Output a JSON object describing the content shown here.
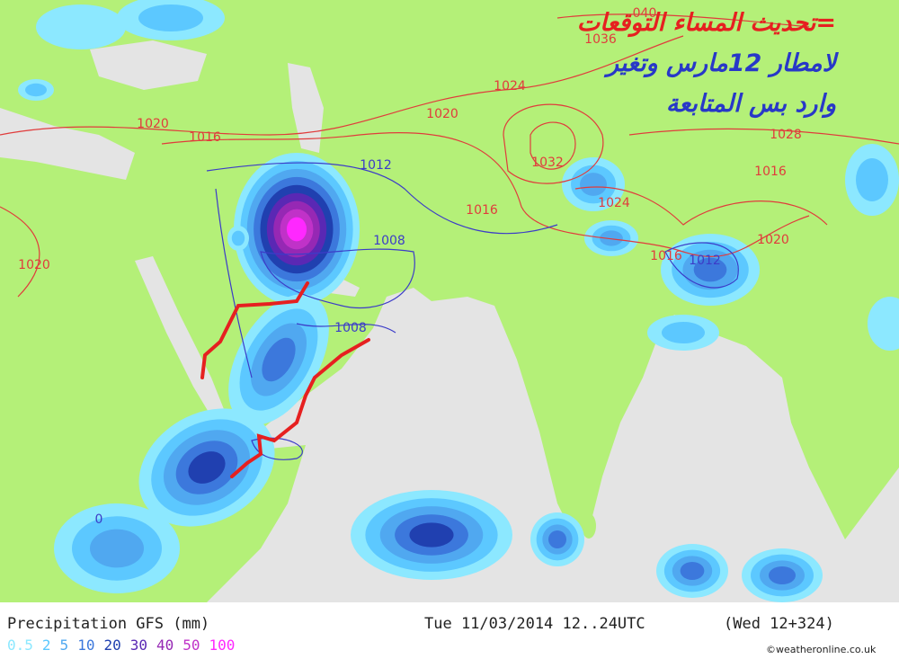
{
  "annotation": {
    "lines": [
      "=تحديث المساء التوقعات",
      "لامطار 12مارس وتغير",
      "وارد بس المتابعة"
    ]
  },
  "isobar_labels": [
    "040",
    "1036",
    "1024",
    "1020",
    "1016",
    "1020",
    "1012",
    "1008",
    "1008",
    "1032",
    "1024",
    "1016",
    "1016",
    "1028",
    "1016",
    "1020",
    "1012",
    "1020",
    "0"
  ],
  "footer": {
    "title": "Precipitation GFS (mm)",
    "valid": "Tue 11/03/2014 12..24UTC",
    "run": "(Wed 12+324)",
    "copyright": "©weatheronline.co.uk"
  },
  "legend": {
    "labels": [
      "0.5",
      "2",
      "5",
      "10",
      "20",
      "30",
      "40",
      "50",
      "100"
    ],
    "colors": [
      "#8ce8ff",
      "#5cc8ff",
      "#50a8f0",
      "#3c78dc",
      "#2040b0",
      "#5a28b4",
      "#9628b4",
      "#c032c8",
      "#ff28ff"
    ]
  }
}
